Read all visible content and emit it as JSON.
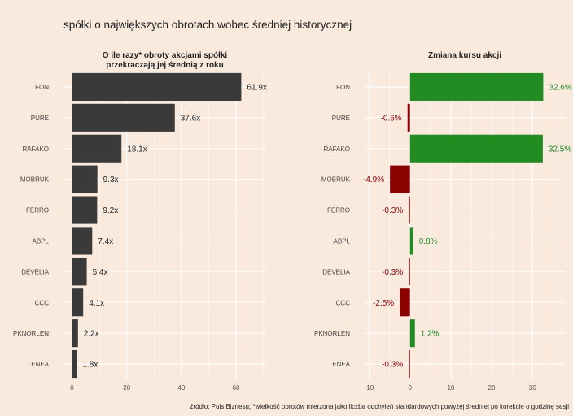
{
  "title": "spółki o największych obrotach wobec średniej historycznej",
  "caption": "źródło: Puls Biznesu; *wielkość obrotów mierzona jako liczba odchyleń standardowych powyżej średniej po korekcie o godzinę sesji",
  "colors": {
    "background": "#faeade",
    "bar_left": "#3a3a3a",
    "positive": "#228b22",
    "negative": "#8b0000",
    "grid": "#ffffff"
  },
  "chart_data": [
    {
      "type": "bar",
      "orientation": "horizontal",
      "title_lines": [
        "O ile razy* obroty akcjami spółki",
        "przekraczają jej średnią z roku"
      ],
      "categories": [
        "FON",
        "PURE",
        "RAFAKO",
        "MOBRUK",
        "FERRO",
        "ABPL",
        "DEVELIA",
        "CCC",
        "PKNORLEN",
        "ENEA"
      ],
      "values": [
        61.9,
        37.6,
        18.1,
        9.3,
        9.2,
        7.4,
        5.4,
        4.1,
        2.2,
        1.8
      ],
      "labels": [
        "61.9x",
        "37.6x",
        "18.1x",
        "9.3x",
        "9.2x",
        "7.4x",
        "5.4x",
        "4.1x",
        "2.2x",
        "1.8x"
      ],
      "xlim": [
        -3.1,
        71
      ],
      "xticks": [
        0,
        20,
        40,
        60
      ],
      "grid": true
    },
    {
      "type": "bar",
      "orientation": "horizontal",
      "title_lines": [
        "Zmiana kursu akcji"
      ],
      "categories": [
        "FON",
        "PURE",
        "RAFAKO",
        "MOBRUK",
        "FERRO",
        "ABPL",
        "DEVELIA",
        "CCC",
        "PKNORLEN",
        "ENEA"
      ],
      "values": [
        32.6,
        -0.6,
        32.5,
        -4.9,
        -0.3,
        0.8,
        -0.3,
        -2.5,
        1.2,
        -0.3
      ],
      "labels": [
        "32.6%",
        "-0.6%",
        "32.5%",
        "-4.9%",
        "-0.3%",
        "0.8%",
        "-0.3%",
        "-2.5%",
        "1.2%",
        "-0.3%"
      ],
      "xlim": [
        -11.1,
        37.9
      ],
      "xticks": [
        -10,
        0,
        10,
        20,
        30
      ],
      "grid": true
    }
  ]
}
